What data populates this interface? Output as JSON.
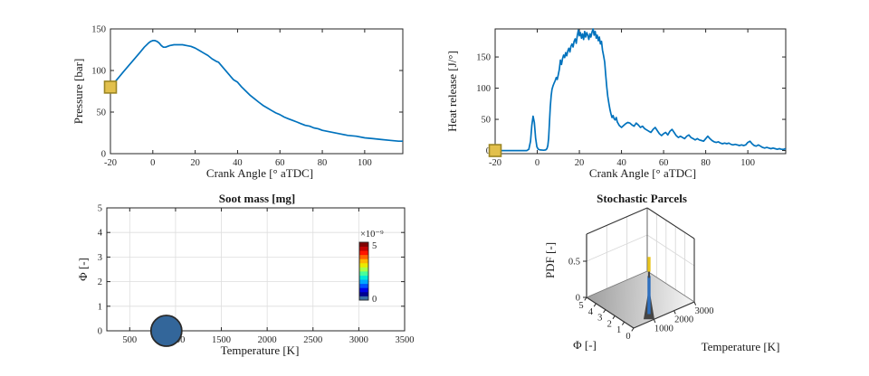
{
  "figure": {
    "background": "#ffffff",
    "axis_color": "#262626",
    "grid_color": "#dedede",
    "line_color": "#0072bd",
    "marker_fill": "#e2c04c",
    "marker_stroke": "#9c8624"
  },
  "chart_data": [
    {
      "id": "pressure",
      "type": "line",
      "xlabel": "Crank Angle [° aTDC]",
      "ylabel": "Pressure [bar]",
      "xlim": [
        -20,
        118
      ],
      "ylim": [
        0,
        150
      ],
      "xticks": [
        -20,
        0,
        20,
        40,
        60,
        80,
        100
      ],
      "yticks": [
        0,
        50,
        100,
        150
      ],
      "line_color": "#0072bd",
      "marker": {
        "x": -20,
        "y": 80,
        "fill": "#e2c04c",
        "stroke": "#9c8624"
      },
      "x": [
        -20,
        -18,
        -16,
        -14,
        -12,
        -10,
        -8,
        -6,
        -4,
        -2,
        -1,
        0,
        1,
        2,
        3,
        4,
        5,
        6,
        7,
        8,
        10,
        12,
        14,
        16,
        18,
        20,
        22,
        24,
        26,
        28,
        30,
        31,
        32,
        34,
        36,
        38,
        40,
        42,
        44,
        46,
        48,
        50,
        52,
        54,
        56,
        58,
        60,
        62,
        64,
        66,
        68,
        70,
        72,
        74,
        76,
        78,
        80,
        84,
        88,
        92,
        96,
        100,
        104,
        108,
        112,
        116,
        118
      ],
      "y": [
        80,
        86,
        92,
        98,
        104,
        110,
        116,
        122,
        128,
        133,
        135,
        136,
        136,
        135,
        133,
        130,
        128,
        128,
        129,
        130,
        131,
        131,
        131,
        130,
        129,
        127,
        124,
        121,
        118,
        114,
        111,
        110,
        107,
        101,
        95,
        89,
        86,
        80,
        75,
        70,
        66,
        62,
        58,
        55,
        52,
        49,
        47,
        44,
        42,
        40,
        38,
        36,
        34,
        33,
        31,
        30,
        28,
        26,
        24,
        22,
        21,
        19,
        18,
        17,
        16,
        15,
        15
      ]
    },
    {
      "id": "heat-release",
      "type": "line",
      "xlabel": "Crank Angle [° aTDC]",
      "ylabel": "Heat release [J/°]",
      "xlim": [
        -20,
        118
      ],
      "ylim": [
        -5,
        195
      ],
      "xticks": [
        -20,
        0,
        20,
        40,
        60,
        80,
        100
      ],
      "yticks": [
        0,
        50,
        100,
        150
      ],
      "line_color": "#0072bd",
      "marker": {
        "x": -20,
        "y": 0,
        "fill": "#e2c04c",
        "stroke": "#9c8624"
      },
      "x": [
        -20,
        -5,
        -4,
        -3.2,
        -2.6,
        -2,
        -1.4,
        -0.8,
        -0.2,
        0.5,
        1.5,
        3,
        4,
        4.6,
        5,
        5.4,
        5.8,
        6.2,
        6.6,
        7,
        7.5,
        8,
        8.5,
        9,
        9.5,
        10,
        10.5,
        11,
        11.5,
        12,
        12.5,
        13,
        13.5,
        14,
        14.5,
        15,
        15.5,
        16,
        16.5,
        17,
        17.5,
        18,
        18.5,
        19,
        19.5,
        20,
        20.5,
        21,
        21.5,
        22,
        22.5,
        23,
        23.5,
        24,
        24.5,
        25,
        25.5,
        26,
        26.5,
        27,
        27.5,
        28,
        28.5,
        29,
        29.5,
        30,
        30.5,
        31,
        31.5,
        32,
        32.5,
        33,
        33.5,
        34,
        34.5,
        35,
        35.5,
        36,
        36.5,
        37,
        37.5,
        38,
        39,
        40,
        41,
        42,
        43,
        44,
        45,
        46,
        47,
        48,
        49,
        50,
        51,
        52,
        53,
        54,
        55,
        56,
        57,
        58,
        59,
        60,
        61,
        62,
        63,
        64,
        65,
        66,
        67,
        68,
        69,
        70,
        71,
        72,
        73,
        74,
        75,
        76,
        77,
        78,
        79,
        80,
        81,
        82,
        83,
        84,
        85,
        86,
        87,
        88,
        89,
        90,
        91,
        92,
        93,
        94,
        95,
        96,
        97,
        98,
        99,
        100,
        101,
        102,
        103,
        104,
        105,
        106,
        107,
        108,
        109,
        110,
        111,
        112,
        113,
        114,
        115,
        116,
        117,
        118
      ],
      "y": [
        0,
        0,
        2,
        15,
        40,
        55,
        45,
        20,
        6,
        2,
        1,
        0.5,
        1,
        3,
        8,
        20,
        45,
        70,
        88,
        98,
        104,
        108,
        112,
        117,
        114,
        122,
        130,
        145,
        138,
        147,
        153,
        149,
        157,
        152,
        160,
        164,
        158,
        167,
        171,
        166,
        175,
        179,
        172,
        184,
        193,
        184,
        189,
        180,
        187,
        178,
        191,
        182,
        189,
        185,
        178,
        187,
        182,
        190,
        195,
        185,
        191,
        180,
        185,
        176,
        182,
        171,
        175,
        161,
        152,
        142,
        122,
        102,
        87,
        76,
        66,
        59,
        53,
        56,
        51,
        49,
        53,
        46,
        40,
        37,
        40,
        43,
        45,
        44,
        41,
        39,
        44,
        41,
        37,
        39,
        35,
        33,
        31,
        29,
        34,
        37,
        32,
        27,
        24,
        27,
        29,
        25,
        31,
        34,
        29,
        24,
        21,
        23,
        21,
        19,
        23,
        25,
        21,
        19,
        17,
        19,
        17,
        16,
        15,
        19,
        23,
        19,
        16,
        14,
        13,
        14,
        12,
        11,
        12,
        11,
        12,
        10,
        9,
        10,
        9,
        8,
        9,
        8,
        9,
        13,
        15,
        11,
        8,
        7,
        9,
        7,
        5,
        4,
        5,
        4,
        3,
        4,
        3,
        2,
        3,
        2,
        2,
        3
      ]
    },
    {
      "id": "soot-mass",
      "type": "scatter",
      "title": "Soot mass [mg]",
      "xlabel": "Temperature [K]",
      "ylabel": "Φ [-]",
      "xlim": [
        250,
        3500
      ],
      "ylim": [
        0,
        5
      ],
      "xticks": [
        500,
        1000,
        1500,
        2000,
        2500,
        3000,
        3500
      ],
      "yticks": [
        0,
        1,
        2,
        3,
        4,
        5
      ],
      "grid": true,
      "points": [
        {
          "x": 900,
          "y": 0,
          "r": 17,
          "fill": "#33669a",
          "stroke": "#2a2a2a"
        }
      ],
      "colorbar": {
        "exp_label": "×10⁻⁹",
        "max_label": "5",
        "min_label": "0",
        "colors_bottom_to_top": [
          "#3a6fa5",
          "#00008f",
          "#0000e8",
          "#0050ff",
          "#00a8ff",
          "#00e8d8",
          "#48ff9c",
          "#a8ff48",
          "#eaea00",
          "#ffb400",
          "#ff6400",
          "#ff1400",
          "#c00000",
          "#800000"
        ]
      }
    },
    {
      "id": "stochastic-parcels",
      "type": "surface3d",
      "title": "Stochastic Parcels",
      "xlabel": "Φ [-]",
      "ylabel": "Temperature [K]",
      "zlabel": "PDF [-]",
      "phi_range": [
        0,
        5
      ],
      "phi_ticks": [
        5,
        4,
        3,
        2,
        1,
        0
      ],
      "temp_range": [
        0,
        3000
      ],
      "temp_ticks": [
        1000,
        2000,
        3000
      ],
      "pdf_ticks": [
        0,
        0.5
      ],
      "spike": {
        "phi": 0.3,
        "temp": 900,
        "pdf": 0.85,
        "color_top": "#e8c41d",
        "color_mid": "#454545",
        "color_bottom": "#2e6fbe"
      }
    }
  ]
}
